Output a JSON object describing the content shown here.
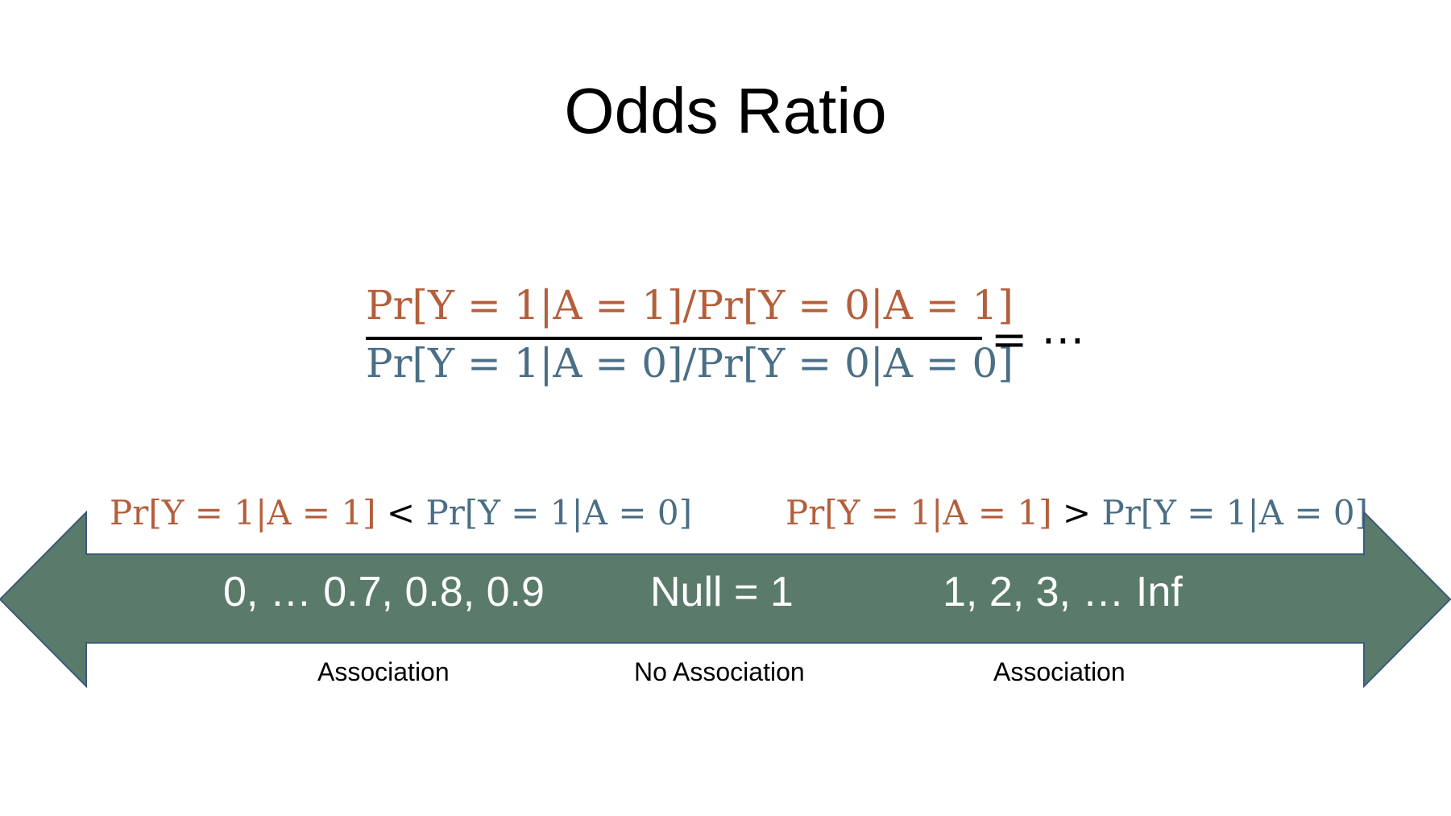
{
  "title": "Odds Ratio",
  "equation": {
    "numerator": "Pr[Y = 1|A = 1]/Pr[Y = 0|A = 1]",
    "denominator": "Pr[Y = 1|A = 0]/Pr[Y = 0|A = 0]",
    "tail": "= ⋯"
  },
  "comparisons": {
    "left": {
      "lhs": "Pr[Y = 1|A = 1]",
      "op": "<",
      "rhs": "Pr[Y = 1|A = 0]"
    },
    "right": {
      "lhs": "Pr[Y = 1|A = 1]",
      "op": ">",
      "rhs": "Pr[Y = 1|A = 0]"
    }
  },
  "arrow": {
    "left_values": "0, … 0.7, 0.8, 0.9",
    "null_value": "Null = 1",
    "right_values": "1, 2, 3, … Inf"
  },
  "labels": {
    "left": "Association",
    "middle": "No Association",
    "right": "Association"
  },
  "colors": {
    "numerator": "#b35f3c",
    "denominator": "#4a6e85",
    "arrow_fill": "#5a7b6a",
    "arrow_stroke": "#3b5a7a"
  }
}
